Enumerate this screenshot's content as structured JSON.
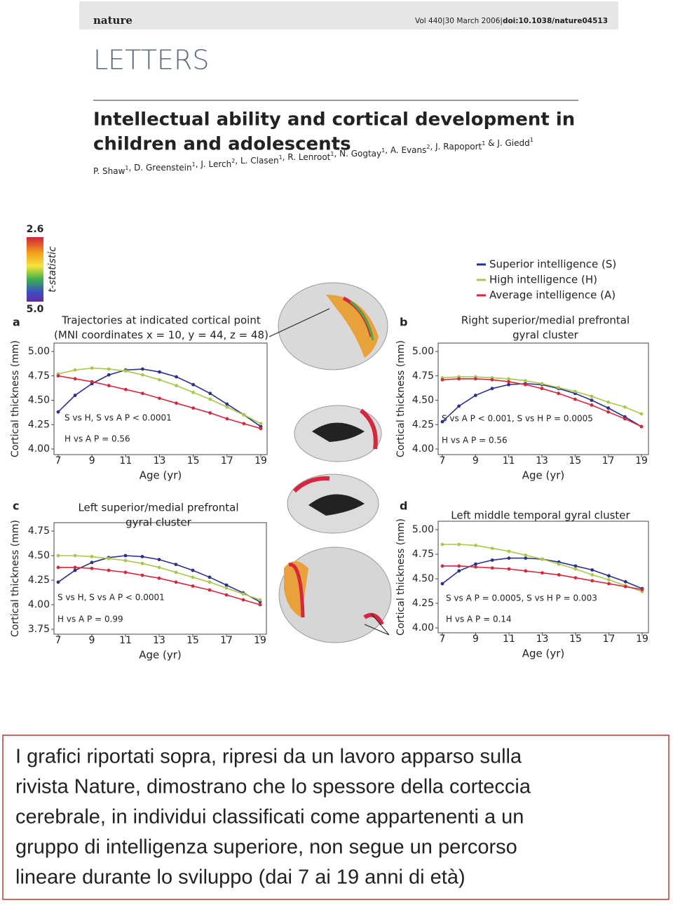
{
  "header": {
    "journal": "nature",
    "citation": "Vol 440|30 March 2006|",
    "doi": "doi:10.1038/nature04513"
  },
  "section": "LETTERS",
  "title": [
    "Intellectual ability and cortical development in",
    "children and adolescents"
  ],
  "authors": [
    {
      "name": "P. Shaw",
      "affil": 1
    },
    {
      "name": ", D. Greenstein",
      "affil": 1
    },
    {
      "name": ", J. Lerch",
      "affil": 2
    },
    {
      "name": ", L. Clasen",
      "affil": 1
    },
    {
      "name": ", R. Lenroot",
      "affil": 1
    },
    {
      "name": ", N. Gogtay",
      "affil": 1
    },
    {
      "name": ", A. Evans",
      "affil": 2
    },
    {
      "name": ", J. Rapoport",
      "affil": 1
    },
    {
      "name": " & J. Giedd",
      "affil": 1
    }
  ],
  "colorbar": {
    "max_label": "2.6",
    "min_label": "5.0",
    "label": "t-statistic"
  },
  "legend": [
    {
      "name": "Superior intelligence (S)",
      "color": "#2b2f8f"
    },
    {
      "name": "High intelligence (H)",
      "color": "#a8c84a"
    },
    {
      "name": "Average intelligence (A)",
      "color": "#d7263d"
    }
  ],
  "chart_data": [
    {
      "type": "line",
      "panel": "a",
      "title": [
        "Trajectories at indicated cortical point",
        "(MNI coordinates x = 10, y = 44, z = 48)"
      ],
      "x_label": "Age (yr)",
      "y_label": "Cortical thickness (mm)",
      "x": [
        7,
        8,
        9,
        10,
        11,
        12,
        13,
        14,
        15,
        16,
        17,
        18,
        19
      ],
      "xlim": [
        7,
        19
      ],
      "xticks": [
        7,
        9,
        11,
        13,
        15,
        17,
        19
      ],
      "ylim": [
        4.0,
        5.0
      ],
      "yticks": [
        {
          "value": 4.0,
          "label": "4.00"
        },
        {
          "value": 4.25,
          "label": "4.25"
        },
        {
          "value": 4.5,
          "label": "4.50"
        },
        {
          "value": 4.75,
          "label": "4.75"
        },
        {
          "value": 5.0,
          "label": "5.00"
        }
      ],
      "annotations": [
        "S vs H, S vs A P < 0.0001",
        "H vs A P = 0.56"
      ],
      "series": [
        {
          "values": [
            4.38,
            4.55,
            4.67,
            4.76,
            4.81,
            4.82,
            4.79,
            4.74,
            4.66,
            4.57,
            4.46,
            4.35,
            4.23
          ]
        },
        {
          "values": [
            4.77,
            4.81,
            4.83,
            4.82,
            4.8,
            4.76,
            4.71,
            4.65,
            4.58,
            4.51,
            4.43,
            4.35,
            4.26
          ]
        },
        {
          "values": [
            4.75,
            4.72,
            4.69,
            4.65,
            4.61,
            4.57,
            4.52,
            4.47,
            4.42,
            4.37,
            4.31,
            4.26,
            4.21
          ]
        }
      ]
    },
    {
      "type": "line",
      "panel": "b",
      "title": [
        "Right superior/medial prefrontal",
        "gyral cluster"
      ],
      "x_label": "Age (yr)",
      "y_label": "Cortical thickness (mm)",
      "x": [
        7,
        8,
        9,
        10,
        11,
        12,
        13,
        14,
        15,
        16,
        17,
        18,
        19
      ],
      "xlim": [
        7,
        19
      ],
      "xticks": [
        7,
        9,
        11,
        13,
        15,
        17,
        19
      ],
      "ylim": [
        4.0,
        5.0
      ],
      "yticks": [
        {
          "value": 4.0,
          "label": "4.00"
        },
        {
          "value": 4.25,
          "label": "4.25"
        },
        {
          "value": 4.5,
          "label": "4.50"
        },
        {
          "value": 4.75,
          "label": "4.75"
        },
        {
          "value": 5.0,
          "label": "5.00"
        }
      ],
      "annotations": [
        "S vs A P < 0.001, S vs H P = 0.0005",
        "H vs A P = 0.56"
      ],
      "series": [
        {
          "values": [
            4.28,
            4.44,
            4.55,
            4.62,
            4.66,
            4.67,
            4.66,
            4.62,
            4.57,
            4.5,
            4.42,
            4.33,
            4.23
          ]
        },
        {
          "values": [
            4.73,
            4.74,
            4.74,
            4.73,
            4.72,
            4.7,
            4.67,
            4.63,
            4.59,
            4.54,
            4.48,
            4.43,
            4.36
          ]
        },
        {
          "values": [
            4.71,
            4.72,
            4.72,
            4.71,
            4.69,
            4.66,
            4.62,
            4.57,
            4.51,
            4.45,
            4.38,
            4.31,
            4.23
          ]
        }
      ]
    },
    {
      "type": "line",
      "panel": "c",
      "title": [
        "Left superior/medial prefrontal",
        "gyral cluster"
      ],
      "x_label": "Age (yr)",
      "y_label": "Cortical thickness (mm)",
      "x": [
        7,
        8,
        9,
        10,
        11,
        12,
        13,
        14,
        15,
        16,
        17,
        18,
        19
      ],
      "xlim": [
        7,
        19
      ],
      "xticks": [
        7,
        9,
        11,
        13,
        15,
        17,
        19
      ],
      "ylim": [
        3.75,
        4.75
      ],
      "yticks": [
        {
          "value": 3.75,
          "label": "3.75"
        },
        {
          "value": 4.0,
          "label": "4.00"
        },
        {
          "value": 4.25,
          "label": "4.25"
        },
        {
          "value": 4.5,
          "label": "4.50"
        },
        {
          "value": 4.75,
          "label": "4.75"
        }
      ],
      "annotations": [
        "S vs H, S vs A P < 0.0001",
        "H vs A P = 0.99"
      ],
      "series": [
        {
          "values": [
            4.23,
            4.35,
            4.43,
            4.48,
            4.5,
            4.49,
            4.46,
            4.41,
            4.35,
            4.28,
            4.2,
            4.12,
            4.03
          ]
        },
        {
          "values": [
            4.5,
            4.5,
            4.49,
            4.47,
            4.45,
            4.42,
            4.38,
            4.33,
            4.28,
            4.23,
            4.17,
            4.11,
            4.05
          ]
        },
        {
          "values": [
            4.38,
            4.38,
            4.37,
            4.35,
            4.33,
            4.3,
            4.27,
            4.23,
            4.19,
            4.15,
            4.1,
            4.05,
            4.0
          ]
        }
      ]
    },
    {
      "type": "line",
      "panel": "d",
      "title": [
        "Left middle temporal gyral cluster"
      ],
      "x_label": "Age (yr)",
      "y_label": "Cortical thickness (mm)",
      "x": [
        7,
        8,
        9,
        10,
        11,
        12,
        13,
        14,
        15,
        16,
        17,
        18,
        19
      ],
      "xlim": [
        7,
        19
      ],
      "xticks": [
        7,
        9,
        11,
        13,
        15,
        17,
        19
      ],
      "ylim": [
        4.0,
        5.0
      ],
      "yticks": [
        {
          "value": 4.0,
          "label": "4.00"
        },
        {
          "value": 4.25,
          "label": "4.25"
        },
        {
          "value": 4.5,
          "label": "4.50"
        },
        {
          "value": 4.75,
          "label": "4.75"
        },
        {
          "value": 5.0,
          "label": "5.00"
        }
      ],
      "annotations": [
        "S vs A P = 0.0005, S vs H P = 0.003",
        "H vs A P = 0.14"
      ],
      "series": [
        {
          "values": [
            4.45,
            4.58,
            4.65,
            4.69,
            4.71,
            4.71,
            4.7,
            4.67,
            4.63,
            4.59,
            4.53,
            4.47,
            4.4
          ]
        },
        {
          "values": [
            4.85,
            4.85,
            4.84,
            4.81,
            4.78,
            4.74,
            4.7,
            4.65,
            4.6,
            4.54,
            4.49,
            4.43,
            4.37
          ]
        },
        {
          "values": [
            4.63,
            4.63,
            4.62,
            4.61,
            4.6,
            4.58,
            4.56,
            4.54,
            4.51,
            4.48,
            4.45,
            4.42,
            4.39
          ]
        }
      ]
    }
  ],
  "caption": [
    "I grafici riportati sopra, ripresi da un lavoro apparso sulla",
    "rivista Nature, dimostrano che lo spessore della corteccia",
    "cerebrale, in individui classificati come appartenenti a un",
    "gruppo di intelligenza superiore, non segue un percorso",
    "lineare durante lo sviluppo (dai 7 ai 19 anni di età)"
  ]
}
